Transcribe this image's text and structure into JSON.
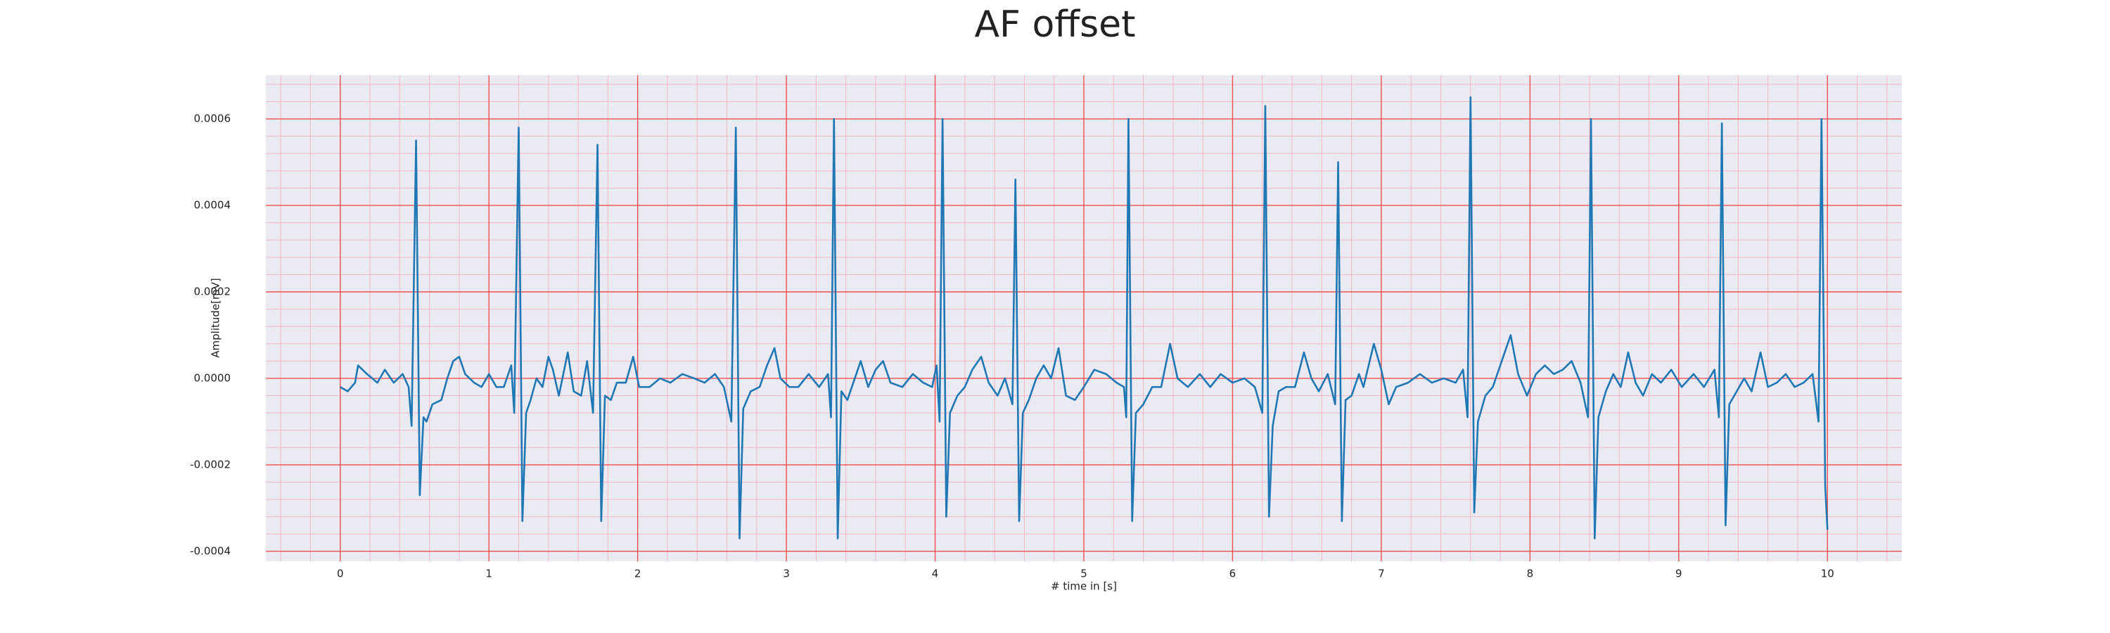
{
  "chart_data": {
    "type": "line",
    "title": "AF offset",
    "xlabel": "# time in [s]",
    "ylabel": "Amplitude[mV]",
    "color": "#1f77b4",
    "grid": true,
    "minor_grid": true,
    "xlim": [
      -0.5,
      10.5
    ],
    "ylim": [
      -0.000423,
      0.000701
    ],
    "xticks": [
      0,
      1,
      2,
      3,
      4,
      5,
      6,
      7,
      8,
      9,
      10
    ],
    "yticks": [
      {
        "value": -0.0004,
        "label": "-0.0004"
      },
      {
        "value": -0.0002,
        "label": "-0.0002"
      },
      {
        "value": 0,
        "label": "0.0000"
      },
      {
        "value": 0.0002,
        "label": "0.0002"
      },
      {
        "value": 0.0004,
        "label": "0.0004"
      },
      {
        "value": 0.0006,
        "label": "0.0006"
      }
    ],
    "x": [
      0,
      0.05,
      0.1,
      0.12,
      0.18,
      0.25,
      0.3,
      0.36,
      0.42,
      0.46,
      0.48,
      0.51,
      0.535,
      0.56,
      0.58,
      0.62,
      0.68,
      0.72,
      0.76,
      0.8,
      0.84,
      0.9,
      0.95,
      1,
      1.05,
      1.1,
      1.15,
      1.17,
      1.2,
      1.225,
      1.25,
      1.28,
      1.32,
      1.36,
      1.4,
      1.43,
      1.47,
      1.53,
      1.57,
      1.62,
      1.66,
      1.7,
      1.73,
      1.755,
      1.78,
      1.82,
      1.86,
      1.92,
      1.97,
      2.01,
      2.08,
      2.15,
      2.22,
      2.3,
      2.38,
      2.45,
      2.52,
      2.58,
      2.63,
      2.66,
      2.685,
      2.71,
      2.76,
      2.82,
      2.87,
      2.92,
      2.96,
      3.02,
      3.08,
      3.15,
      3.22,
      3.28,
      3.3,
      3.32,
      3.345,
      3.37,
      3.41,
      3.45,
      3.5,
      3.55,
      3.6,
      3.65,
      3.7,
      3.78,
      3.85,
      3.92,
      3.98,
      4.01,
      4.03,
      4.05,
      4.075,
      4.1,
      4.15,
      4.2,
      4.25,
      4.31,
      4.36,
      4.42,
      4.47,
      4.52,
      4.54,
      4.565,
      4.59,
      4.63,
      4.68,
      4.73,
      4.78,
      4.83,
      4.88,
      4.94,
      5,
      5.07,
      5.15,
      5.22,
      5.27,
      5.285,
      5.3,
      5.325,
      5.35,
      5.4,
      5.46,
      5.52,
      5.58,
      5.63,
      5.7,
      5.78,
      5.85,
      5.92,
      6,
      6.08,
      6.15,
      6.2,
      6.22,
      6.245,
      6.27,
      6.31,
      6.36,
      6.42,
      6.48,
      6.53,
      6.58,
      6.64,
      6.69,
      6.71,
      6.735,
      6.76,
      6.8,
      6.85,
      6.88,
      6.95,
      7,
      7.05,
      7.1,
      7.18,
      7.26,
      7.34,
      7.42,
      7.5,
      7.55,
      7.58,
      7.6,
      7.625,
      7.65,
      7.7,
      7.75,
      7.8,
      7.87,
      7.92,
      7.98,
      8.04,
      8.1,
      8.16,
      8.22,
      8.28,
      8.34,
      8.39,
      8.41,
      8.435,
      8.46,
      8.51,
      8.56,
      8.61,
      8.66,
      8.71,
      8.76,
      8.82,
      8.88,
      8.95,
      9.02,
      9.1,
      9.17,
      9.24,
      9.27,
      9.29,
      9.315,
      9.34,
      9.39,
      9.44,
      9.49,
      9.55,
      9.6,
      9.66,
      9.72,
      9.78,
      9.84,
      9.9,
      9.94,
      9.96,
      9.985,
      10
    ],
    "values": [
      -2e-05,
      -3e-05,
      -1e-05,
      3e-05,
      1e-05,
      -1e-05,
      2e-05,
      -1e-05,
      1e-05,
      -2e-05,
      -0.00011,
      0.00055,
      -0.00027,
      -9e-05,
      -0.0001,
      -6e-05,
      -5e-05,
      0,
      4e-05,
      5e-05,
      1e-05,
      -1e-05,
      -2e-05,
      1e-05,
      -2e-05,
      -2e-05,
      3e-05,
      -8e-05,
      0.00058,
      -0.00033,
      -8e-05,
      -5e-05,
      0,
      -2e-05,
      5e-05,
      2e-05,
      -4e-05,
      6e-05,
      -3e-05,
      -4e-05,
      4e-05,
      -8e-05,
      0.00054,
      -0.00033,
      -4e-05,
      -5e-05,
      -1e-05,
      -1e-05,
      5e-05,
      -2e-05,
      -2e-05,
      0,
      -1e-05,
      1e-05,
      0,
      -1e-05,
      1e-05,
      -2e-05,
      -0.0001,
      0.00058,
      -0.00037,
      -7e-05,
      -3e-05,
      -2e-05,
      3e-05,
      7e-05,
      0,
      -2e-05,
      -2e-05,
      1e-05,
      -2e-05,
      1e-05,
      -9e-05,
      0.0006,
      -0.00037,
      -3e-05,
      -5e-05,
      -1e-05,
      4e-05,
      -2e-05,
      2e-05,
      4e-05,
      -1e-05,
      -2e-05,
      1e-05,
      -1e-05,
      -2e-05,
      3e-05,
      -0.0001,
      0.0006,
      -0.00032,
      -8e-05,
      -4e-05,
      -2e-05,
      2e-05,
      5e-05,
      -1e-05,
      -4e-05,
      0,
      -6e-05,
      0.00046,
      -0.00033,
      -8e-05,
      -5e-05,
      0,
      3e-05,
      0,
      7e-05,
      -4e-05,
      -5e-05,
      -2e-05,
      2e-05,
      1e-05,
      -1e-05,
      -2e-05,
      -9e-05,
      0.0006,
      -0.00033,
      -8e-05,
      -6e-05,
      -2e-05,
      -2e-05,
      8e-05,
      0,
      -2e-05,
      1e-05,
      -2e-05,
      1e-05,
      -1e-05,
      0,
      -2e-05,
      -8e-05,
      0.00063,
      -0.00032,
      -0.00011,
      -3e-05,
      -2e-05,
      -2e-05,
      6e-05,
      0,
      -3e-05,
      1e-05,
      -6e-05,
      0.0005,
      -0.00033,
      -5e-05,
      -4e-05,
      1e-05,
      -2e-05,
      8e-05,
      2e-05,
      -6e-05,
      -2e-05,
      -1e-05,
      1e-05,
      -1e-05,
      0,
      -1e-05,
      2e-05,
      -9e-05,
      0.00065,
      -0.00031,
      -0.0001,
      -4e-05,
      -2e-05,
      3e-05,
      0.0001,
      1e-05,
      -4e-05,
      1e-05,
      3e-05,
      1e-05,
      2e-05,
      4e-05,
      -1e-05,
      -9e-05,
      0.0006,
      -0.00037,
      -9e-05,
      -3e-05,
      1e-05,
      -2e-05,
      6e-05,
      -1e-05,
      -4e-05,
      1e-05,
      -1e-05,
      2e-05,
      -2e-05,
      1e-05,
      -2e-05,
      2e-05,
      -9e-05,
      0.00059,
      -0.00034,
      -6e-05,
      -3e-05,
      0,
      -3e-05,
      6e-05,
      -2e-05,
      -1e-05,
      1e-05,
      -2e-05,
      -1e-05,
      1e-05,
      -0.0001,
      0.0006,
      -0.00025,
      -0.00035
    ]
  }
}
